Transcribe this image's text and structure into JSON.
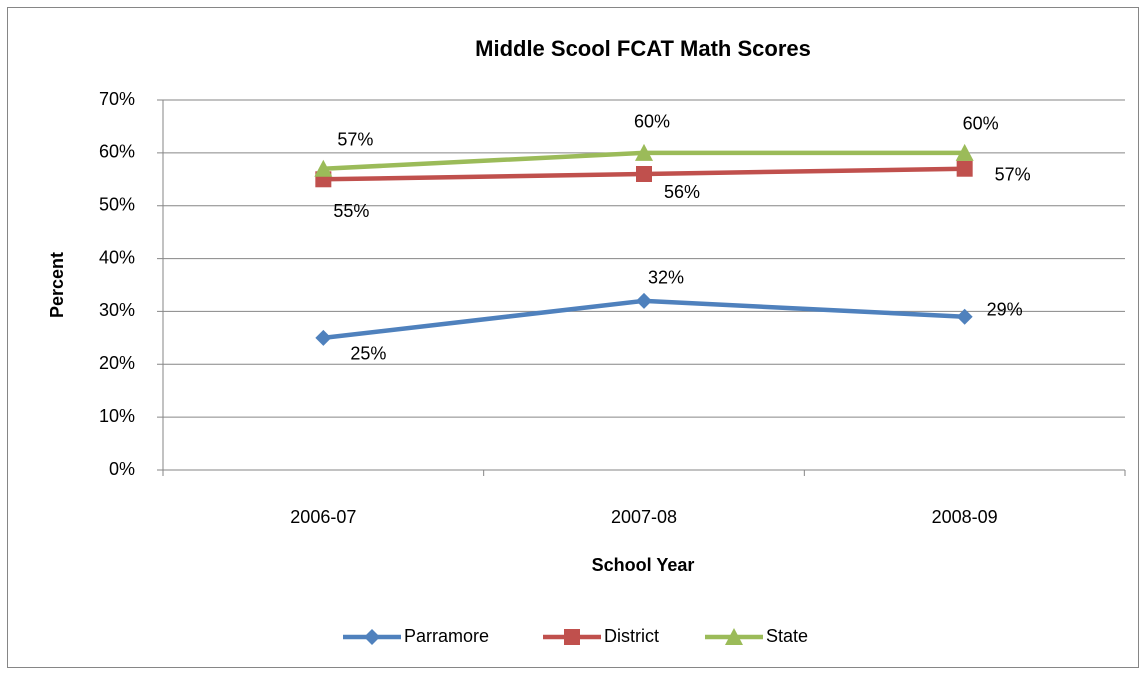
{
  "chart_data": {
    "type": "line",
    "title": "Middle Scool FCAT Math Scores",
    "x_label": "School Year",
    "y_label": "Percent",
    "categories": [
      "2006-07",
      "2007-08",
      "2008-09"
    ],
    "series": [
      {
        "name": "Parramore",
        "color": "#4f81bd",
        "marker": "diamond",
        "values": [
          25,
          32,
          29
        ],
        "value_labels": [
          "25%",
          "32%",
          "29%"
        ]
      },
      {
        "name": "District",
        "color": "#c0504d",
        "marker": "square",
        "values": [
          55,
          56,
          57
        ],
        "value_labels": [
          "55%",
          "56%",
          "57%"
        ]
      },
      {
        "name": "State",
        "color": "#9bbb59",
        "marker": "triangle",
        "values": [
          57,
          60,
          60
        ],
        "value_labels": [
          "57%",
          "60%",
          "60%"
        ]
      }
    ],
    "ylim": [
      0,
      70
    ],
    "yticks": [
      {
        "value": 0,
        "label": "0%"
      },
      {
        "value": 10,
        "label": "10%"
      },
      {
        "value": 20,
        "label": "20%"
      },
      {
        "value": 30,
        "label": "30%"
      },
      {
        "value": 40,
        "label": "40%"
      },
      {
        "value": 50,
        "label": "50%"
      },
      {
        "value": 60,
        "label": "60%"
      },
      {
        "value": 70,
        "label": "70%"
      }
    ],
    "grid": true,
    "legend": "bottom"
  }
}
